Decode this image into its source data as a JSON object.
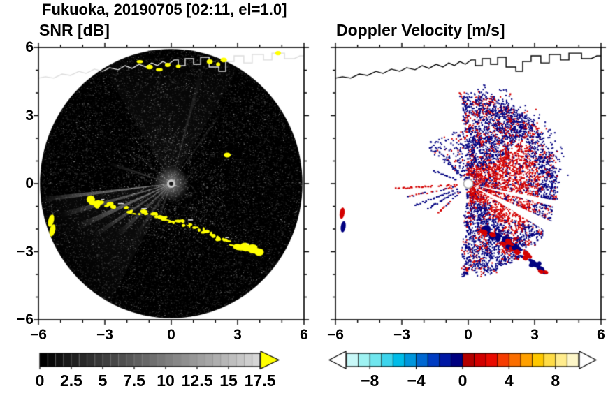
{
  "figure": {
    "title": "Fukuoka, 20190705 [02:11, el=1.0]"
  },
  "panels": {
    "snr": {
      "title": "SNR [dB]"
    },
    "doppler": {
      "title": "Doppler Velocity [m/s]"
    }
  },
  "coastline": [
    [
      -6,
      4.65
    ],
    [
      -5.68,
      4.71
    ],
    [
      -5.31,
      4.65
    ],
    [
      -4.93,
      4.83
    ],
    [
      -4.55,
      4.77
    ],
    [
      -4.17,
      4.95
    ],
    [
      -3.85,
      4.86
    ],
    [
      -3.47,
      5.05
    ],
    [
      -3.09,
      4.95
    ],
    [
      -2.78,
      5.11
    ],
    [
      -2.4,
      5.02
    ],
    [
      -2.08,
      5.2
    ],
    [
      -1.77,
      5.08
    ],
    [
      -1.45,
      5.26
    ],
    [
      -1.14,
      5.14
    ],
    [
      -0.88,
      5.32
    ],
    [
      -0.63,
      5.2
    ],
    [
      -0.38,
      5.38
    ],
    [
      -0.13,
      5.26
    ],
    [
      0.13,
      5.45
    ],
    [
      0.32,
      5.45
    ],
    [
      0.32,
      5.2
    ],
    [
      0.63,
      5.2
    ],
    [
      0.63,
      5.51
    ],
    [
      1.01,
      5.51
    ],
    [
      1.01,
      5.26
    ],
    [
      1.33,
      5.26
    ],
    [
      1.33,
      5.57
    ],
    [
      1.71,
      5.57
    ],
    [
      1.71,
      5.14
    ],
    [
      2.15,
      5.14
    ],
    [
      2.15,
      4.95
    ],
    [
      2.46,
      4.95
    ],
    [
      2.46,
      5.38
    ],
    [
      2.84,
      5.38
    ],
    [
      2.84,
      5.63
    ],
    [
      3.28,
      5.63
    ],
    [
      3.28,
      5.32
    ],
    [
      3.66,
      5.32
    ],
    [
      3.66,
      5.69
    ],
    [
      4.17,
      5.69
    ],
    [
      4.17,
      5.45
    ],
    [
      4.55,
      5.45
    ],
    [
      4.55,
      5.75
    ],
    [
      5.12,
      5.75
    ],
    [
      5.12,
      5.51
    ],
    [
      5.56,
      5.51
    ],
    [
      5.81,
      5.63
    ],
    [
      6,
      5.63
    ]
  ],
  "chart_data": [
    {
      "type": "heatmap",
      "title": "SNR [dB]",
      "xlim": [
        -6,
        6
      ],
      "ylim": [
        -6,
        6
      ],
      "x_ticks": [
        -6,
        -3,
        0,
        3,
        6
      ],
      "y_ticks": [
        6,
        3,
        0,
        -3,
        -6
      ],
      "grid": false,
      "colorbar": {
        "range": [
          0,
          17.5
        ],
        "tick_labels": [
          0,
          2.5,
          5,
          7.5,
          10,
          12.5,
          15,
          17.5
        ],
        "cells": 28,
        "start_color": "#000000",
        "end_color": "#d6d6d6",
        "over_color": "#ffff00"
      },
      "render": {
        "background": "#000000",
        "coastline_color": "#dddddd",
        "clutter_color": "#ffff00",
        "beams": [
          [
            187,
            1.5,
            5.9,
            0.5
          ],
          [
            196,
            2,
            5.2,
            0.38
          ],
          [
            205,
            2.5,
            4.6,
            0.45
          ],
          [
            214,
            2,
            4.2,
            0.33
          ],
          [
            224,
            3,
            3.4,
            0.28
          ],
          [
            236,
            2,
            2.8,
            0.22
          ],
          [
            250,
            3,
            2.2,
            0.18
          ],
          [
            162,
            1.5,
            3.0,
            0.22
          ],
          [
            140,
            2,
            2.0,
            0.13
          ],
          [
            75,
            1.2,
            5.5,
            0.16
          ],
          [
            55,
            1,
            4.0,
            0.13
          ],
          [
            90,
            60,
            6,
            0.05
          ],
          [
            215,
            55,
            6,
            0.06
          ]
        ],
        "dark_beams": [
          [
            27,
            1.6,
            1.8,
            4.3
          ]
        ],
        "clutter_arc": [
          [
            -3.47,
            -0.83
          ],
          [
            -2.53,
            -1.05
          ],
          [
            -1.42,
            -1.29
          ],
          [
            -0.32,
            -1.51
          ],
          [
            0.63,
            -1.75
          ],
          [
            1.58,
            -2.12
          ],
          [
            2.37,
            -2.52
          ],
          [
            3.16,
            -2.83
          ],
          [
            3.79,
            -2.92
          ]
        ],
        "left_patch": [
          [
            -5.43,
            -1.63
          ],
          [
            -5.37,
            -2.06
          ]
        ],
        "spot": [
          2.53,
          1.26
        ],
        "top_spots": [
          [
            -1.42,
            5.38
          ],
          [
            -0.98,
            5.14
          ],
          [
            -0.54,
            5.02
          ],
          [
            -0.16,
            5.23
          ],
          [
            0.32,
            5.17
          ],
          [
            1.74,
            5.38
          ],
          [
            2.12,
            5.26
          ],
          [
            2.37,
            5.45
          ],
          [
            4.83,
            5.75
          ]
        ]
      }
    },
    {
      "type": "heatmap",
      "title": "Doppler Velocity [m/s]",
      "xlim": [
        -6,
        6
      ],
      "ylim": [
        -6,
        6
      ],
      "x_ticks": [
        -6,
        -3,
        0,
        3,
        6
      ],
      "y_ticks": [
        6,
        3,
        0,
        -3,
        -6
      ],
      "grid": false,
      "colorbar": {
        "range": [
          -10,
          10
        ],
        "tick_labels": [
          -8,
          -4,
          0,
          4,
          8
        ],
        "cells": [
          "#c8f8f8",
          "#9ef2f2",
          "#6fe6ee",
          "#3cd4ec",
          "#00bce8",
          "#0096dc",
          "#0068d2",
          "#003cc2",
          "#0018a4",
          "#000080",
          "#b40000",
          "#d20000",
          "#ea0a00",
          "#f63c00",
          "#fa6e00",
          "#ffa000",
          "#ffc800",
          "#ffdc46",
          "#ffec8c",
          "#fdf6c8"
        ],
        "under_color": "#ffffff",
        "over_color": "#ffffff"
      },
      "render": {
        "coastline_color": "#000000",
        "negative_color": "#000080",
        "positive_color": "#d40000",
        "fan": {
          "a0": -95,
          "a1": 95,
          "rmax": 4.0,
          "n": 2400
        },
        "fringe": {
          "a0": 5,
          "a1": 85,
          "r0": 2.8,
          "r1": 4.5,
          "n": 240
        },
        "sparse": {
          "a0": 95,
          "a1": 140,
          "rmax": 2.4,
          "n": 150
        },
        "white_wedges": [
          [
            -28,
            3.5
          ],
          [
            -13,
            2
          ]
        ],
        "streaks": [
          [
            183,
            3.4,
            "p"
          ],
          [
            191,
            3.0,
            "m"
          ],
          [
            201,
            2.7,
            "n"
          ],
          [
            210,
            2.3,
            "n"
          ],
          [
            222,
            1.9,
            "m"
          ],
          [
            133,
            2.6,
            "n"
          ],
          [
            160,
            1.7,
            "n"
          ]
        ],
        "arc1": [
          [
            0.69,
            -2.06
          ],
          [
            1.2,
            -2.31
          ],
          [
            1.71,
            -2.55
          ],
          [
            1.96,
            -2.74
          ]
        ],
        "arc2": [
          [
            2.15,
            -2.92
          ],
          [
            2.59,
            -3.17
          ],
          [
            3.03,
            -3.48
          ],
          [
            3.35,
            -3.78
          ]
        ],
        "left_patch": [
          [
            -5.7,
            -1.3
          ],
          [
            -5.65,
            -1.9
          ]
        ]
      }
    }
  ]
}
